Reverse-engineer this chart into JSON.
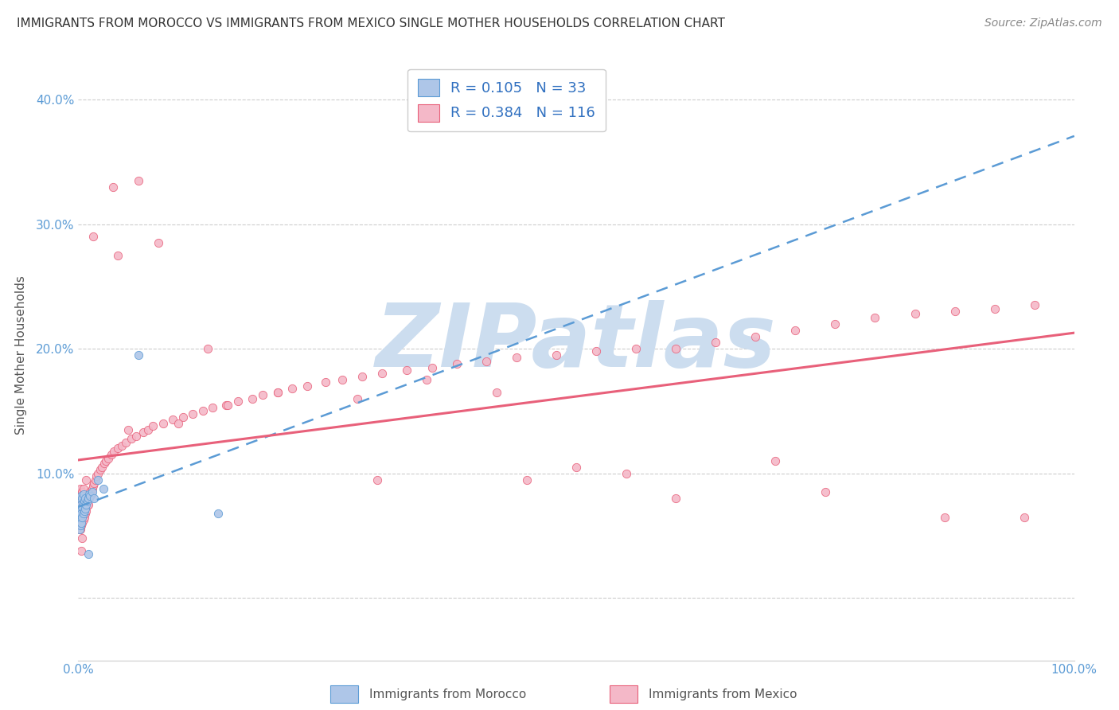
{
  "title": "IMMIGRANTS FROM MOROCCO VS IMMIGRANTS FROM MEXICO SINGLE MOTHER HOUSEHOLDS CORRELATION CHART",
  "source": "Source: ZipAtlas.com",
  "ylabel": "Single Mother Households",
  "xlim": [
    0.0,
    1.0
  ],
  "ylim": [
    -0.05,
    0.44
  ],
  "yticks": [
    0.0,
    0.1,
    0.2,
    0.3,
    0.4
  ],
  "ytick_labels": [
    "",
    "10.0%",
    "20.0%",
    "30.0%",
    "40.0%"
  ],
  "xticks": [
    0.0,
    0.2,
    0.4,
    0.6,
    0.8,
    1.0
  ],
  "xtick_labels": [
    "0.0%",
    "",
    "",
    "",
    "",
    "100.0%"
  ],
  "morocco_R": 0.105,
  "morocco_N": 33,
  "mexico_R": 0.384,
  "mexico_N": 116,
  "morocco_color": "#aec6e8",
  "mexico_color": "#f4b8c8",
  "morocco_edge_color": "#5b9bd5",
  "mexico_edge_color": "#e8607a",
  "morocco_line_color": "#5b9bd5",
  "mexico_line_color": "#e8607a",
  "watermark": "ZIPatlas",
  "watermark_color": "#ccddef",
  "background_color": "#ffffff",
  "grid_color": "#cccccc",
  "legend_text_color": "#3070c0",
  "morocco_x": [
    0.001,
    0.001,
    0.001,
    0.002,
    0.002,
    0.002,
    0.002,
    0.003,
    0.003,
    0.003,
    0.003,
    0.004,
    0.004,
    0.004,
    0.005,
    0.005,
    0.005,
    0.006,
    0.006,
    0.007,
    0.007,
    0.008,
    0.009,
    0.01,
    0.011,
    0.012,
    0.014,
    0.016,
    0.02,
    0.025,
    0.06,
    0.14,
    0.01
  ],
  "morocco_y": [
    0.055,
    0.062,
    0.07,
    0.058,
    0.065,
    0.072,
    0.08,
    0.06,
    0.068,
    0.075,
    0.082,
    0.065,
    0.073,
    0.08,
    0.068,
    0.076,
    0.083,
    0.07,
    0.078,
    0.072,
    0.08,
    0.075,
    0.078,
    0.08,
    0.083,
    0.082,
    0.085,
    0.08,
    0.095,
    0.088,
    0.195,
    0.068,
    0.035
  ],
  "mexico_x": [
    0.001,
    0.001,
    0.001,
    0.001,
    0.002,
    0.002,
    0.002,
    0.002,
    0.002,
    0.003,
    0.003,
    0.003,
    0.003,
    0.004,
    0.004,
    0.004,
    0.004,
    0.005,
    0.005,
    0.005,
    0.005,
    0.006,
    0.006,
    0.006,
    0.007,
    0.007,
    0.008,
    0.008,
    0.009,
    0.01,
    0.01,
    0.011,
    0.012,
    0.013,
    0.014,
    0.015,
    0.016,
    0.017,
    0.018,
    0.02,
    0.022,
    0.024,
    0.026,
    0.028,
    0.03,
    0.033,
    0.036,
    0.04,
    0.044,
    0.048,
    0.053,
    0.058,
    0.065,
    0.07,
    0.075,
    0.085,
    0.095,
    0.105,
    0.115,
    0.125,
    0.135,
    0.148,
    0.16,
    0.175,
    0.185,
    0.2,
    0.215,
    0.23,
    0.248,
    0.265,
    0.285,
    0.305,
    0.33,
    0.355,
    0.38,
    0.41,
    0.44,
    0.48,
    0.52,
    0.56,
    0.6,
    0.64,
    0.68,
    0.72,
    0.76,
    0.8,
    0.84,
    0.88,
    0.92,
    0.96,
    0.2,
    0.35,
    0.5,
    0.05,
    0.1,
    0.15,
    0.28,
    0.42,
    0.55,
    0.7,
    0.3,
    0.45,
    0.6,
    0.75,
    0.87,
    0.95,
    0.04,
    0.08,
    0.13,
    0.06,
    0.035,
    0.015,
    0.008,
    0.006,
    0.004,
    0.003
  ],
  "mexico_y": [
    0.055,
    0.062,
    0.07,
    0.078,
    0.055,
    0.063,
    0.072,
    0.08,
    0.088,
    0.058,
    0.067,
    0.075,
    0.083,
    0.06,
    0.07,
    0.078,
    0.085,
    0.063,
    0.072,
    0.08,
    0.088,
    0.065,
    0.074,
    0.082,
    0.068,
    0.076,
    0.07,
    0.079,
    0.074,
    0.075,
    0.083,
    0.08,
    0.085,
    0.083,
    0.088,
    0.09,
    0.092,
    0.095,
    0.098,
    0.1,
    0.103,
    0.105,
    0.108,
    0.11,
    0.112,
    0.115,
    0.118,
    0.12,
    0.122,
    0.125,
    0.128,
    0.13,
    0.133,
    0.135,
    0.138,
    0.14,
    0.143,
    0.145,
    0.148,
    0.15,
    0.153,
    0.155,
    0.158,
    0.16,
    0.163,
    0.165,
    0.168,
    0.17,
    0.173,
    0.175,
    0.178,
    0.18,
    0.183,
    0.185,
    0.188,
    0.19,
    0.193,
    0.195,
    0.198,
    0.2,
    0.2,
    0.205,
    0.21,
    0.215,
    0.22,
    0.225,
    0.228,
    0.23,
    0.232,
    0.235,
    0.165,
    0.175,
    0.105,
    0.135,
    0.14,
    0.155,
    0.16,
    0.165,
    0.1,
    0.11,
    0.095,
    0.095,
    0.08,
    0.085,
    0.065,
    0.065,
    0.275,
    0.285,
    0.2,
    0.335,
    0.33,
    0.29,
    0.095,
    0.072,
    0.048,
    0.038
  ]
}
